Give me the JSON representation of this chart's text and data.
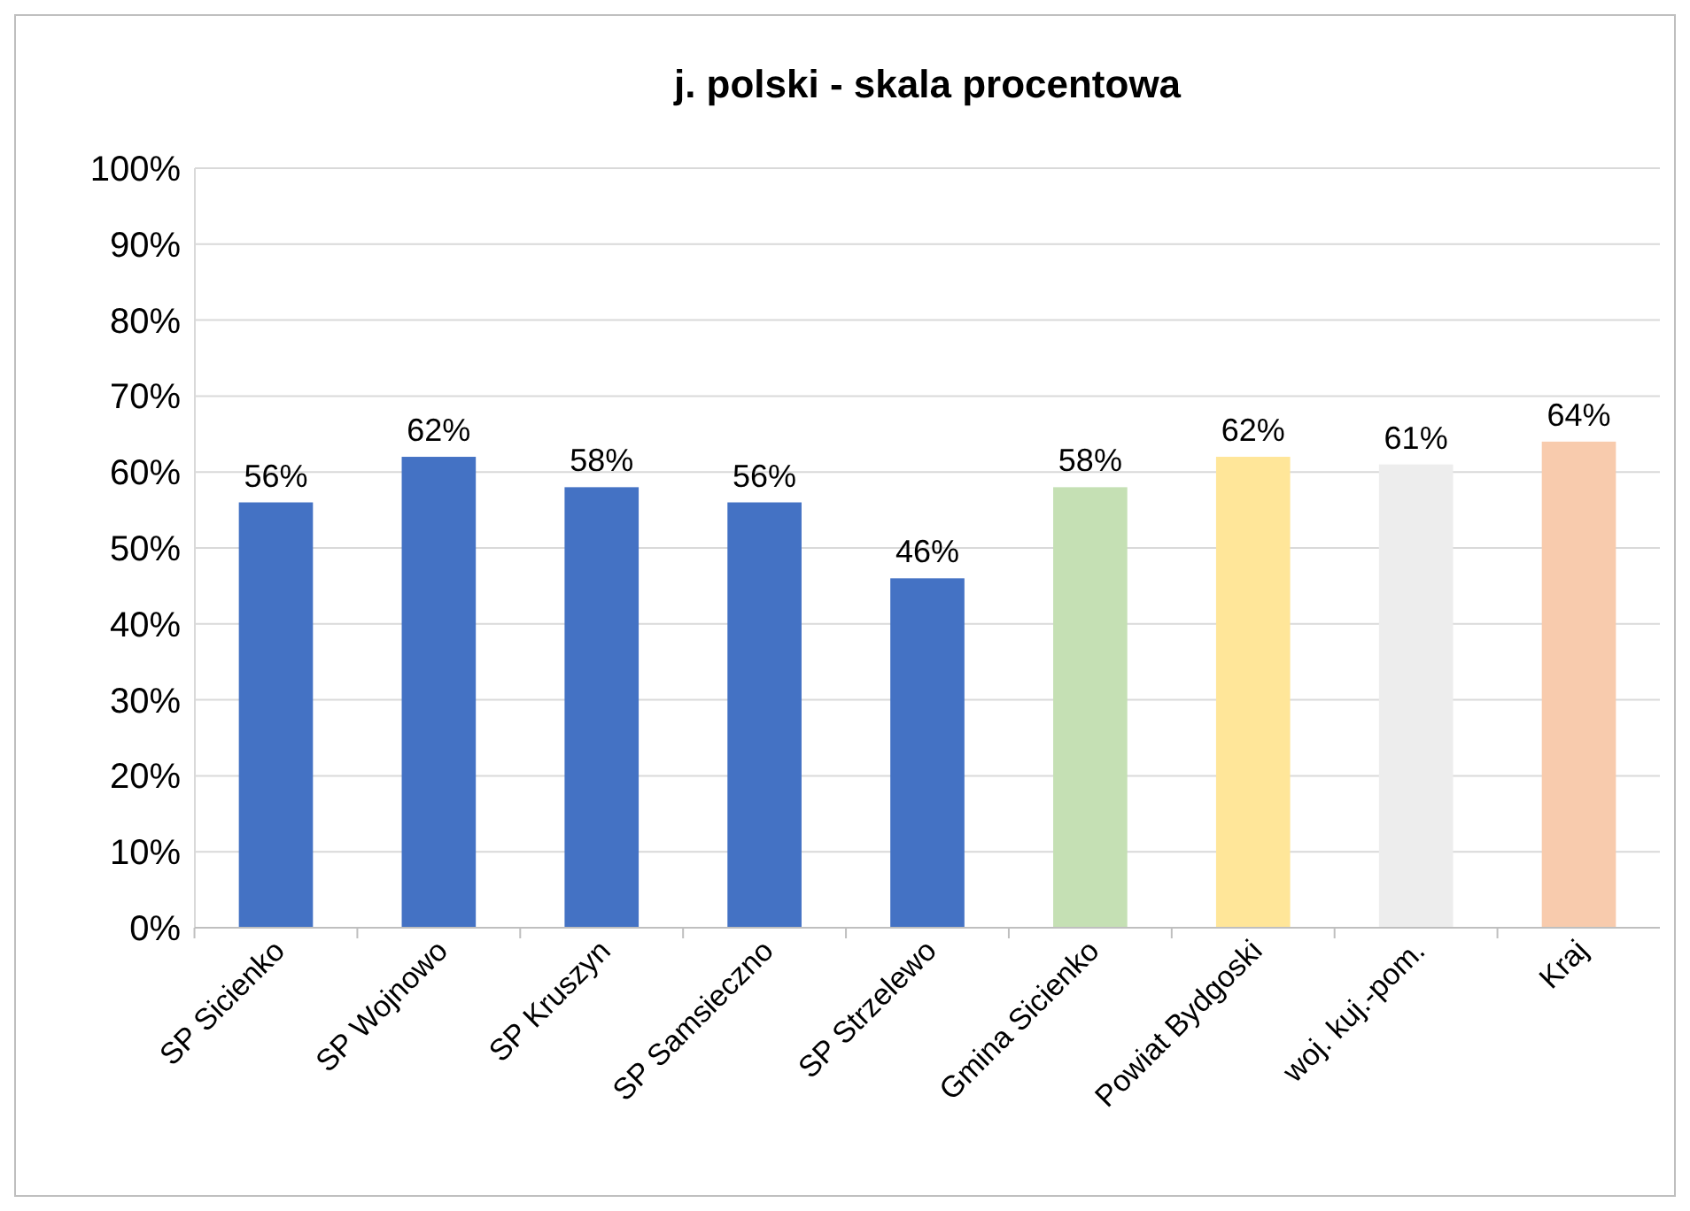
{
  "chart_data": {
    "type": "bar",
    "title": "j. polski - skala procentowa",
    "categories": [
      "SP Sicienko",
      "SP Wojnowo",
      "SP Kruszyn",
      "SP Samsieczno",
      "SP Strzelewo",
      "Gmina Sicienko",
      "Powiat Bydgoski",
      "woj. kuj.-pom.",
      "Kraj"
    ],
    "values": [
      56,
      62,
      58,
      56,
      46,
      58,
      62,
      61,
      64
    ],
    "colors": [
      "#4472c4",
      "#4472c4",
      "#4472c4",
      "#4472c4",
      "#4472c4",
      "#c5e0b4",
      "#ffe699",
      "#ededed",
      "#f8cbad"
    ],
    "value_labels": [
      "56%",
      "62%",
      "58%",
      "56%",
      "46%",
      "58%",
      "62%",
      "61%",
      "64%"
    ],
    "ylim": [
      0,
      100
    ],
    "yticks": [
      {
        "value": 0,
        "label": "0%"
      },
      {
        "value": 10,
        "label": "10%"
      },
      {
        "value": 20,
        "label": "20%"
      },
      {
        "value": 30,
        "label": "30%"
      },
      {
        "value": 40,
        "label": "40%"
      },
      {
        "value": 50,
        "label": "50%"
      },
      {
        "value": 60,
        "label": "60%"
      },
      {
        "value": 70,
        "label": "70%"
      },
      {
        "value": 80,
        "label": "80%"
      },
      {
        "value": 90,
        "label": "90%"
      },
      {
        "value": 100,
        "label": "100%"
      }
    ],
    "grid": "y"
  }
}
